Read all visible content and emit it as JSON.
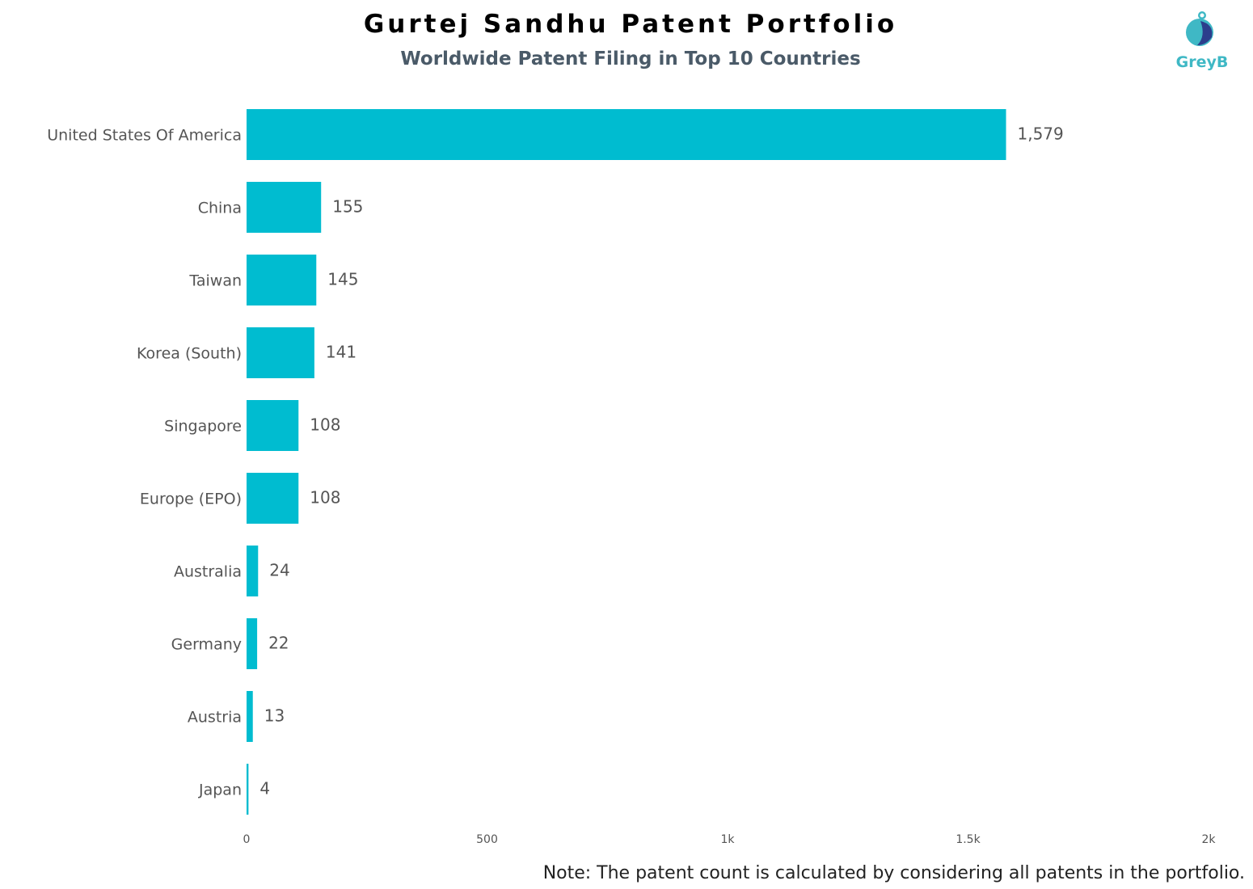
{
  "header": {
    "title": "Gurtej Sandhu Patent Portfolio",
    "subtitle": "Worldwide Patent Filing in Top 10 Countries"
  },
  "logo": {
    "text": "GreyB",
    "icon": "greyb-logo-icon"
  },
  "note": "Note: The patent count is calculated by considering all patents in the portfolio.",
  "colors": {
    "bar": "#00bcd0",
    "label": "#555555",
    "value": "#555555",
    "axis_tick": "#555555"
  },
  "chart_data": {
    "type": "bar",
    "orientation": "horizontal",
    "title": "Gurtej Sandhu Patent Portfolio",
    "subtitle": "Worldwide Patent Filing in Top 10 Countries",
    "categories": [
      "United States Of America",
      "China",
      "Taiwan",
      "Korea (South)",
      "Singapore",
      "Europe (EPO)",
      "Australia",
      "Germany",
      "Austria",
      "Japan"
    ],
    "values": [
      1579,
      155,
      145,
      141,
      108,
      108,
      24,
      22,
      13,
      4
    ],
    "value_labels": [
      "1,579",
      "155",
      "145",
      "141",
      "108",
      "108",
      "24",
      "22",
      "13",
      "4"
    ],
    "xlim": [
      0,
      2000
    ],
    "x_ticks": [
      0,
      500,
      1000,
      1500,
      2000
    ],
    "x_tick_labels": [
      "0",
      "500",
      "1k",
      "1.5k",
      "2k"
    ],
    "grid": false,
    "legend": "none"
  }
}
